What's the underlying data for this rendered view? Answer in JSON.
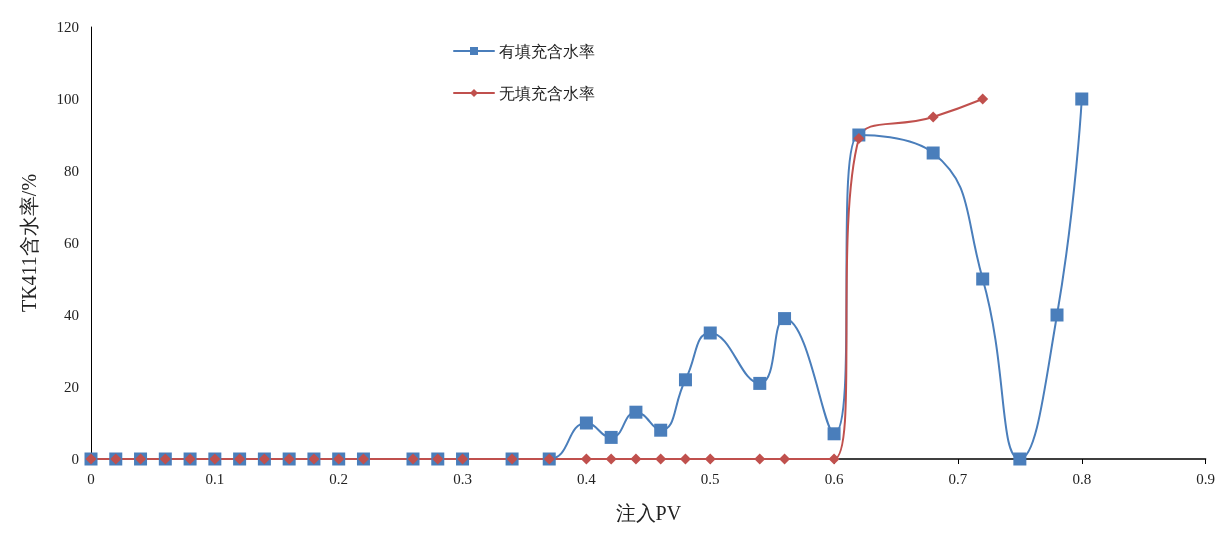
{
  "chart_data": {
    "type": "line",
    "xlabel": "注入PV",
    "ylabel": "TK411含水率/%",
    "xlim": [
      0,
      0.9
    ],
    "xticks": [
      0,
      0.1,
      0.2,
      0.3,
      0.4,
      0.5,
      0.6,
      0.7,
      0.8,
      0.9
    ],
    "ylim": [
      0,
      120
    ],
    "yticks": [
      0,
      20,
      40,
      60,
      80,
      100,
      120
    ],
    "grid": false,
    "legend": "top",
    "line_style": "solid",
    "series": [
      {
        "name": "有填充含水率",
        "color": "#4a7ebb",
        "marker": "square",
        "x": [
          0,
          0.02,
          0.04,
          0.06,
          0.08,
          0.1,
          0.12,
          0.14,
          0.16,
          0.18,
          0.2,
          0.22,
          0.26,
          0.28,
          0.3,
          0.34,
          0.37,
          0.4,
          0.42,
          0.44,
          0.46,
          0.48,
          0.5,
          0.54,
          0.56,
          0.6,
          0.62,
          0.68,
          0.72,
          0.75,
          0.78,
          0.8
        ],
        "values": [
          0,
          0,
          0,
          0,
          0,
          0,
          0,
          0,
          0,
          0,
          0,
          0,
          0,
          0,
          0,
          0,
          0,
          10,
          6,
          13,
          8,
          22,
          35,
          21,
          39,
          7,
          90,
          85,
          50,
          0,
          40,
          100
        ]
      },
      {
        "name": "无填充含水率",
        "color": "#c0504d",
        "marker": "diamond",
        "x": [
          0,
          0.02,
          0.04,
          0.06,
          0.08,
          0.1,
          0.12,
          0.14,
          0.16,
          0.18,
          0.2,
          0.22,
          0.26,
          0.28,
          0.3,
          0.34,
          0.37,
          0.4,
          0.42,
          0.44,
          0.46,
          0.48,
          0.5,
          0.54,
          0.56,
          0.6,
          0.62,
          0.68,
          0.72
        ],
        "values": [
          0,
          0,
          0,
          0,
          0,
          0,
          0,
          0,
          0,
          0,
          0,
          0,
          0,
          0,
          0,
          0,
          0,
          0,
          0,
          0,
          0,
          0,
          0,
          0,
          0,
          0,
          89,
          95,
          100
        ]
      }
    ]
  }
}
